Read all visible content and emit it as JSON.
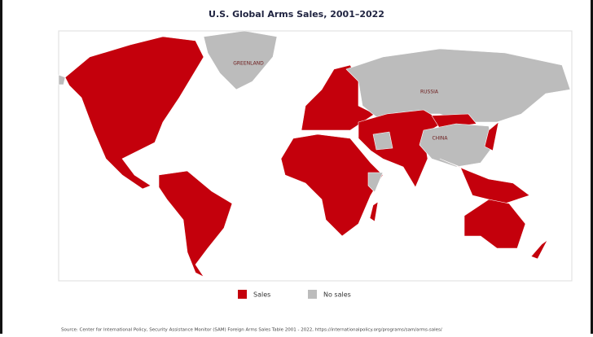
{
  "title": "U.S. Global Arms Sales, 2001–2022",
  "map": {
    "labels": [
      "GREENLAND",
      "RUSSIA",
      "CHINA"
    ]
  },
  "legend": [
    {
      "label": "Sales",
      "color": "#c4000c"
    },
    {
      "label": "No sales",
      "color": "#bcbcbc"
    }
  ],
  "source": "Source: Center for International Policy, Security Assistance Monitor (SAM) Foreign Arms Sales Table 2001 - 2022, https://internationalpolicy.org/programs/sam/arms-sales/"
}
